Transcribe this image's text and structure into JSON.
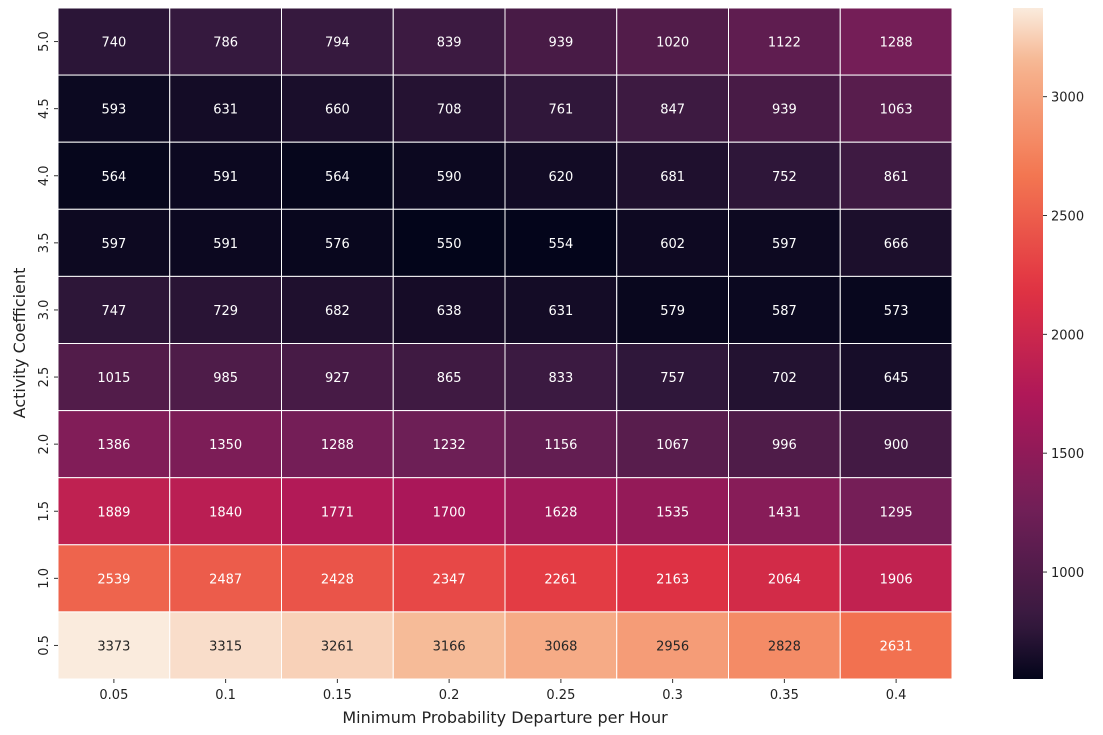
{
  "chart_data": {
    "type": "heatmap",
    "title": "",
    "xlabel": "Minimum Probability Departure per Hour",
    "ylabel": "Activity Coefficient",
    "x_categories": [
      "0.05",
      "0.1",
      "0.15",
      "0.2",
      "0.25",
      "0.3",
      "0.35",
      "0.4"
    ],
    "y_categories": [
      "5.0",
      "4.5",
      "4.0",
      "3.5",
      "3.0",
      "2.5",
      "2.0",
      "1.5",
      "1.0",
      "0.5"
    ],
    "values": [
      [
        740,
        786,
        794,
        839,
        939,
        1020,
        1122,
        1288
      ],
      [
        593,
        631,
        660,
        708,
        761,
        847,
        939,
        1063
      ],
      [
        564,
        591,
        564,
        590,
        620,
        681,
        752,
        861
      ],
      [
        597,
        591,
        576,
        550,
        554,
        602,
        597,
        666
      ],
      [
        747,
        729,
        682,
        638,
        631,
        579,
        587,
        573
      ],
      [
        1015,
        985,
        927,
        865,
        833,
        757,
        702,
        645
      ],
      [
        1386,
        1350,
        1288,
        1232,
        1156,
        1067,
        996,
        900
      ],
      [
        1889,
        1840,
        1771,
        1700,
        1628,
        1535,
        1431,
        1295
      ],
      [
        2539,
        2487,
        2428,
        2347,
        2261,
        2163,
        2064,
        1906
      ],
      [
        3373,
        3315,
        3261,
        3166,
        3068,
        2956,
        2828,
        2631
      ]
    ],
    "annotated": true,
    "colormap": "rocket",
    "colormap_stops": [
      "#03051a",
      "#35193e",
      "#701f57",
      "#ad1759",
      "#e13342",
      "#f37651",
      "#f6b48f",
      "#faebdd"
    ],
    "vmin": 550,
    "vmax": 3373,
    "colorbar": {
      "ticks": [
        1000,
        1500,
        2000,
        2500,
        3000
      ],
      "labels": [
        "1000",
        "1500",
        "2000",
        "2500",
        "3000"
      ],
      "placement": "right"
    },
    "grid_line_color": "#ffffff"
  }
}
